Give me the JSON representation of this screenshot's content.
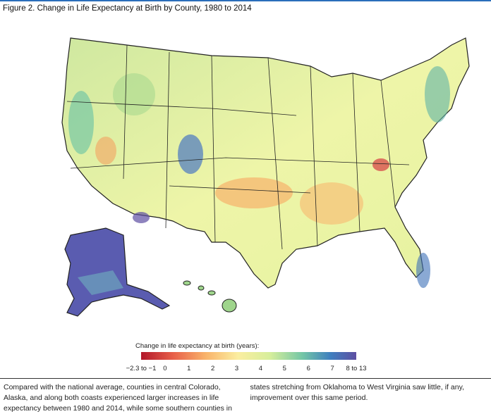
{
  "header": {
    "title": "Figure 2. Change in Life Expectancy at Birth by County, 1980 to 2014"
  },
  "legend": {
    "title": "Change in life expectancy at birth (years):",
    "ticks": [
      "−2.3 to −1",
      "0",
      "1",
      "2",
      "3",
      "4",
      "5",
      "6",
      "7",
      "8 to 13"
    ]
  },
  "caption": "Compared with the national average, counties in central Colorado, Alaska, and along both coasts experienced larger increases in life expectancy between 1980 and 2014, while some southern counties in states stretching from Oklahoma to West Virginia saw little, if any, improvement over this same period."
}
